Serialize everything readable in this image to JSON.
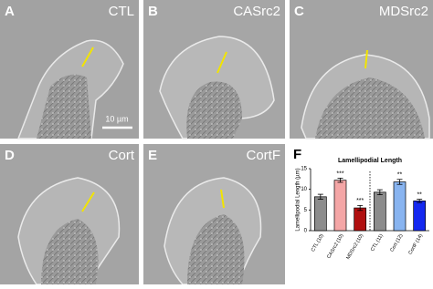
{
  "panels": [
    {
      "letter": "A",
      "label": "CTL",
      "scale_bar": "10 µm"
    },
    {
      "letter": "B",
      "label": "CASrc2"
    },
    {
      "letter": "C",
      "label": "MDSrc2"
    },
    {
      "letter": "D",
      "label": "Cort"
    },
    {
      "letter": "E",
      "label": "CortF"
    }
  ],
  "chart_data": {
    "type": "bar",
    "letter": "F",
    "title": "Lamellipodial Length",
    "y_label": "Lamellipodial Length (µm)",
    "categories": [
      "CTL (10)",
      "CASrc2 (10)",
      "MDSrc2 (10)",
      "CTL (11)",
      "Cort (12)",
      "CortF (14)"
    ],
    "values": [
      8.2,
      12.2,
      5.5,
      9.3,
      11.8,
      7.2
    ],
    "errors": [
      0.6,
      0.5,
      0.6,
      0.6,
      0.6,
      0.4
    ],
    "colors": [
      "#8c8c8c",
      "#f4a6a6",
      "#b01010",
      "#8c8c8c",
      "#88b4f0",
      "#1428f0"
    ],
    "sig_labels": [
      null,
      "***",
      "***",
      null,
      "**",
      "**"
    ],
    "ylim": [
      0,
      15
    ],
    "yticks": [
      0,
      5,
      10,
      15
    ]
  }
}
